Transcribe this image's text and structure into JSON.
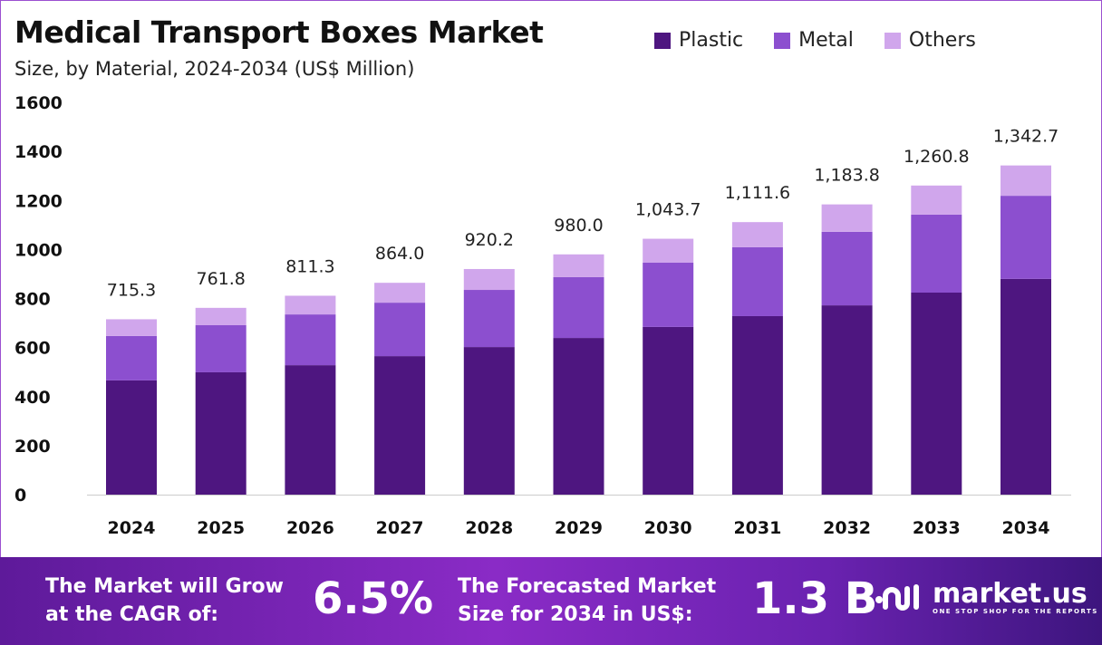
{
  "chart_data": {
    "type": "bar",
    "stacked": true,
    "title": "Medical Transport Boxes Market",
    "subtitle": "Size, by Material, 2024-2034 (US$ Million)",
    "categories": [
      "2024",
      "2025",
      "2026",
      "2027",
      "2028",
      "2029",
      "2030",
      "2031",
      "2032",
      "2033",
      "2034"
    ],
    "series": [
      {
        "name": "Plastic",
        "color": "#4e1680",
        "values": [
          466,
          499,
          528,
          565,
          602,
          639,
          684,
          728,
          772,
          824,
          880
        ]
      },
      {
        "name": "Metal",
        "color": "#8c4fcf",
        "values": [
          181,
          192,
          207,
          218,
          233,
          248,
          262,
          281,
          300,
          318,
          339
        ]
      },
      {
        "name": "Others",
        "color": "#d0a6ec",
        "values": [
          68.3,
          70.8,
          76.3,
          81,
          85.2,
          93,
          97.7,
          102.6,
          111.8,
          118.8,
          123.7
        ]
      }
    ],
    "totals": [
      "715.3",
      "761.8",
      "811.3",
      "864.0",
      "920.2",
      "980.0",
      "1,043.7",
      "1,111.6",
      "1,183.8",
      "1,260.8",
      "1,342.7"
    ],
    "ylim": [
      0,
      1600
    ],
    "yticks": [
      "0",
      "200",
      "400",
      "600",
      "800",
      "1000",
      "1200",
      "1400",
      "1600"
    ],
    "grid": false,
    "legend_position": "top-right"
  },
  "footer": {
    "cagr_label": "The Market will Grow at the CAGR of:",
    "cagr_value": "6.5%",
    "forecast_label": "The Forecasted Market Size for 2034 in US$:",
    "forecast_value": "1.3 B",
    "logo_text": "market.us",
    "logo_tagline": "ONE STOP SHOP FOR THE REPORTS"
  }
}
